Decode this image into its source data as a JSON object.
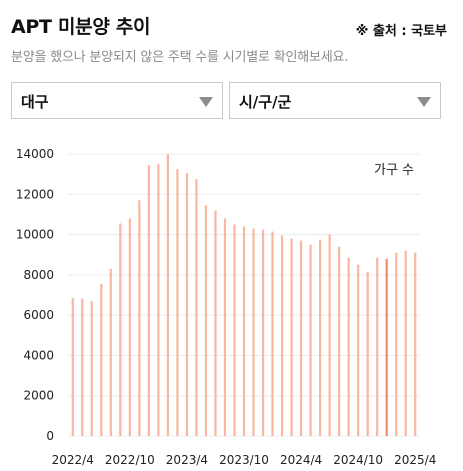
{
  "header": {
    "title": "APT 미분양 추이",
    "source": "※ 출처 : 국토부",
    "subtitle": "분양을 했으나 분양되지 않은 주택 수를 시기별로 확인해보세요."
  },
  "filters": {
    "region": "대구",
    "district": "시/구/군"
  },
  "colors": {
    "bar": "#f7b7a1",
    "bar_highlight": "#f08a68",
    "grid": "#ececec"
  },
  "chart_data": {
    "type": "bar",
    "unit_label": "가구 수",
    "ylim": [
      0,
      14000
    ],
    "yticks": [
      0,
      2000,
      4000,
      6000,
      8000,
      10000,
      12000,
      14000
    ],
    "xtick_labels": [
      {
        "index": 0,
        "label": "2022/4"
      },
      {
        "index": 6,
        "label": "2022/10"
      },
      {
        "index": 12,
        "label": "2023/4"
      },
      {
        "index": 18,
        "label": "2023/10"
      },
      {
        "index": 24,
        "label": "2024/4"
      },
      {
        "index": 30,
        "label": "2024/10"
      },
      {
        "index": 36,
        "label": "2025/4"
      }
    ],
    "categories": [
      "2022/4",
      "2022/5",
      "2022/6",
      "2022/7",
      "2022/8",
      "2022/9",
      "2022/10",
      "2022/11",
      "2022/12",
      "2023/1",
      "2023/2",
      "2023/3",
      "2023/4",
      "2023/5",
      "2023/6",
      "2023/7",
      "2023/8",
      "2023/9",
      "2023/10",
      "2023/11",
      "2023/12",
      "2024/1",
      "2024/2",
      "2024/3",
      "2024/4",
      "2024/5",
      "2024/6",
      "2024/7",
      "2024/8",
      "2024/9",
      "2024/10",
      "2024/11",
      "2024/12",
      "2025/1",
      "2025/2",
      "2025/3",
      "2025/4"
    ],
    "values": [
      6850,
      6830,
      6700,
      7550,
      8300,
      10550,
      10800,
      11700,
      13450,
      13500,
      14000,
      13250,
      13050,
      12750,
      11450,
      11200,
      10800,
      10500,
      10400,
      10300,
      10250,
      10150,
      9950,
      9800,
      9700,
      9500,
      9750,
      10000,
      9400,
      8850,
      8500,
      8150,
      8850,
      8800,
      9100,
      9200,
      9100
    ],
    "highlight_index": 33,
    "grid": true,
    "legend": "none"
  }
}
